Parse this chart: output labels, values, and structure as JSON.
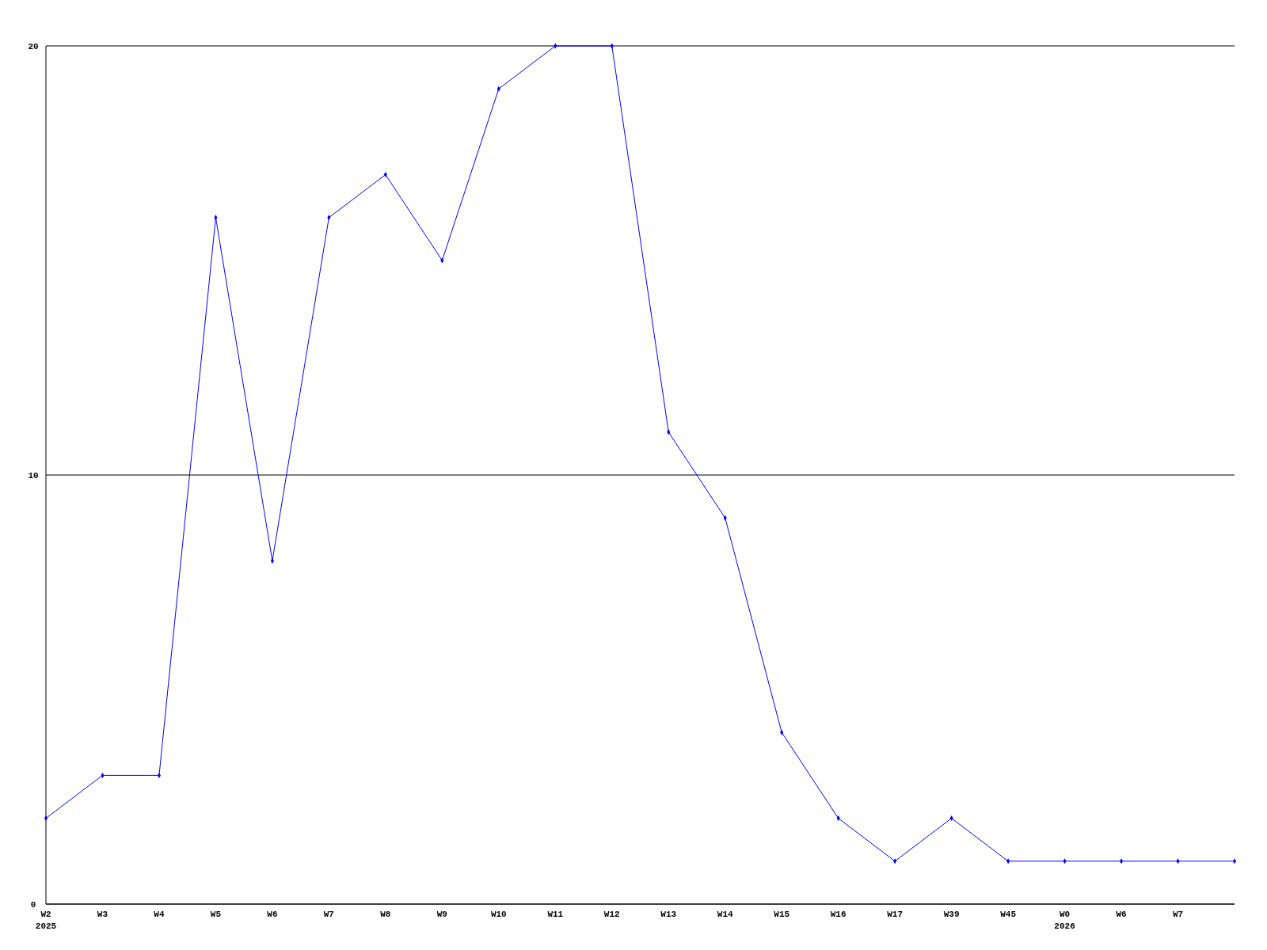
{
  "chart_data": {
    "type": "line",
    "categories": [
      "W2\n2025",
      "W3",
      "W4",
      "W5",
      "W6",
      "W7",
      "W8",
      "W9",
      "W10",
      "W11",
      "W12",
      "W13",
      "W14",
      "W15",
      "W16",
      "W17",
      "W39",
      "W45",
      "W0\n2026",
      "W6",
      "W7",
      null
    ],
    "series": [
      {
        "color": "#0000ff",
        "values": [
          2,
          3,
          3,
          16,
          8,
          16,
          17,
          15,
          19,
          20,
          20,
          11,
          9,
          4,
          2,
          1,
          2,
          1,
          1,
          1,
          1,
          1
        ]
      }
    ],
    "ylim": [
      0,
      20
    ],
    "yticks": [
      0,
      10,
      20
    ],
    "grid": "y",
    "marker": "diamond",
    "line_style": "solid"
  }
}
